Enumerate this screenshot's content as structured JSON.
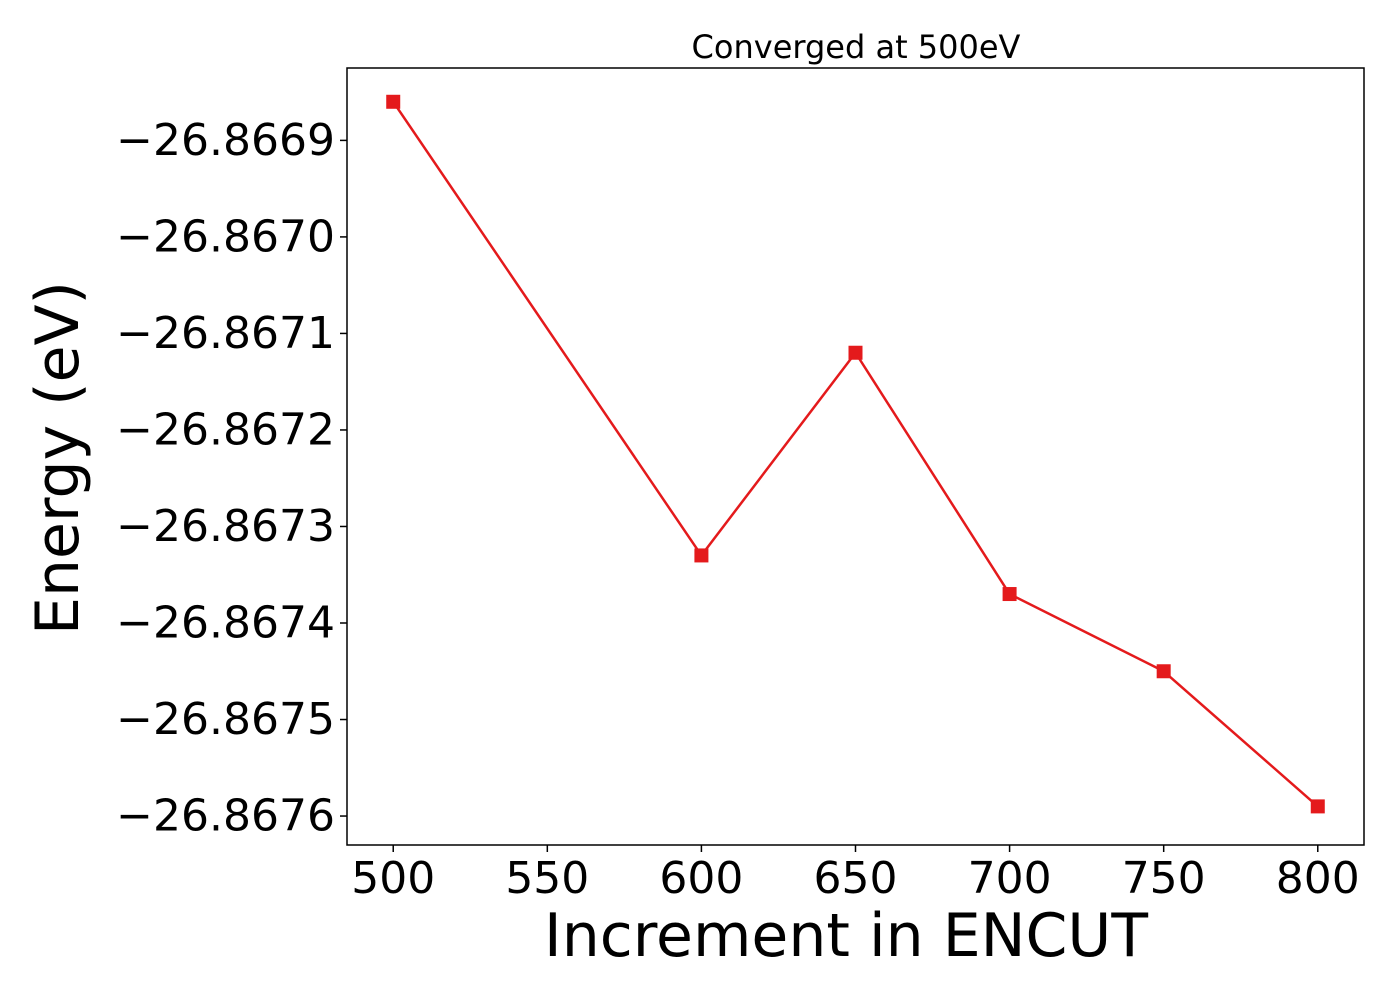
{
  "chart_data": {
    "type": "line",
    "title": "Converged at 500eV",
    "xlabel": "Increment in ENCUT",
    "ylabel": "Energy (eV)",
    "x": [
      500,
      600,
      650,
      700,
      750,
      800
    ],
    "series": [
      {
        "values": [
          -26.86686,
          -26.86733,
          -26.86712,
          -26.86737,
          -26.86745,
          -26.86759
        ],
        "color": "#e41a1c",
        "marker": "square"
      }
    ],
    "xticks": [
      500,
      550,
      600,
      650,
      700,
      750,
      800
    ],
    "xtick_labels": [
      "500",
      "550",
      "600",
      "650",
      "700",
      "750",
      "800"
    ],
    "yticks": [
      -26.8669,
      -26.867,
      -26.8671,
      -26.8672,
      -26.8673,
      -26.8674,
      -26.8675,
      -26.8676
    ],
    "ytick_labels": [
      "−26.8669",
      "−26.8670",
      "−26.8671",
      "−26.8672",
      "−26.8673",
      "−26.8674",
      "−26.8675",
      "−26.8676"
    ],
    "xlim": [
      485,
      815
    ],
    "ylim": [
      -26.86763,
      -26.866825
    ],
    "grid": false,
    "legend": "none"
  }
}
